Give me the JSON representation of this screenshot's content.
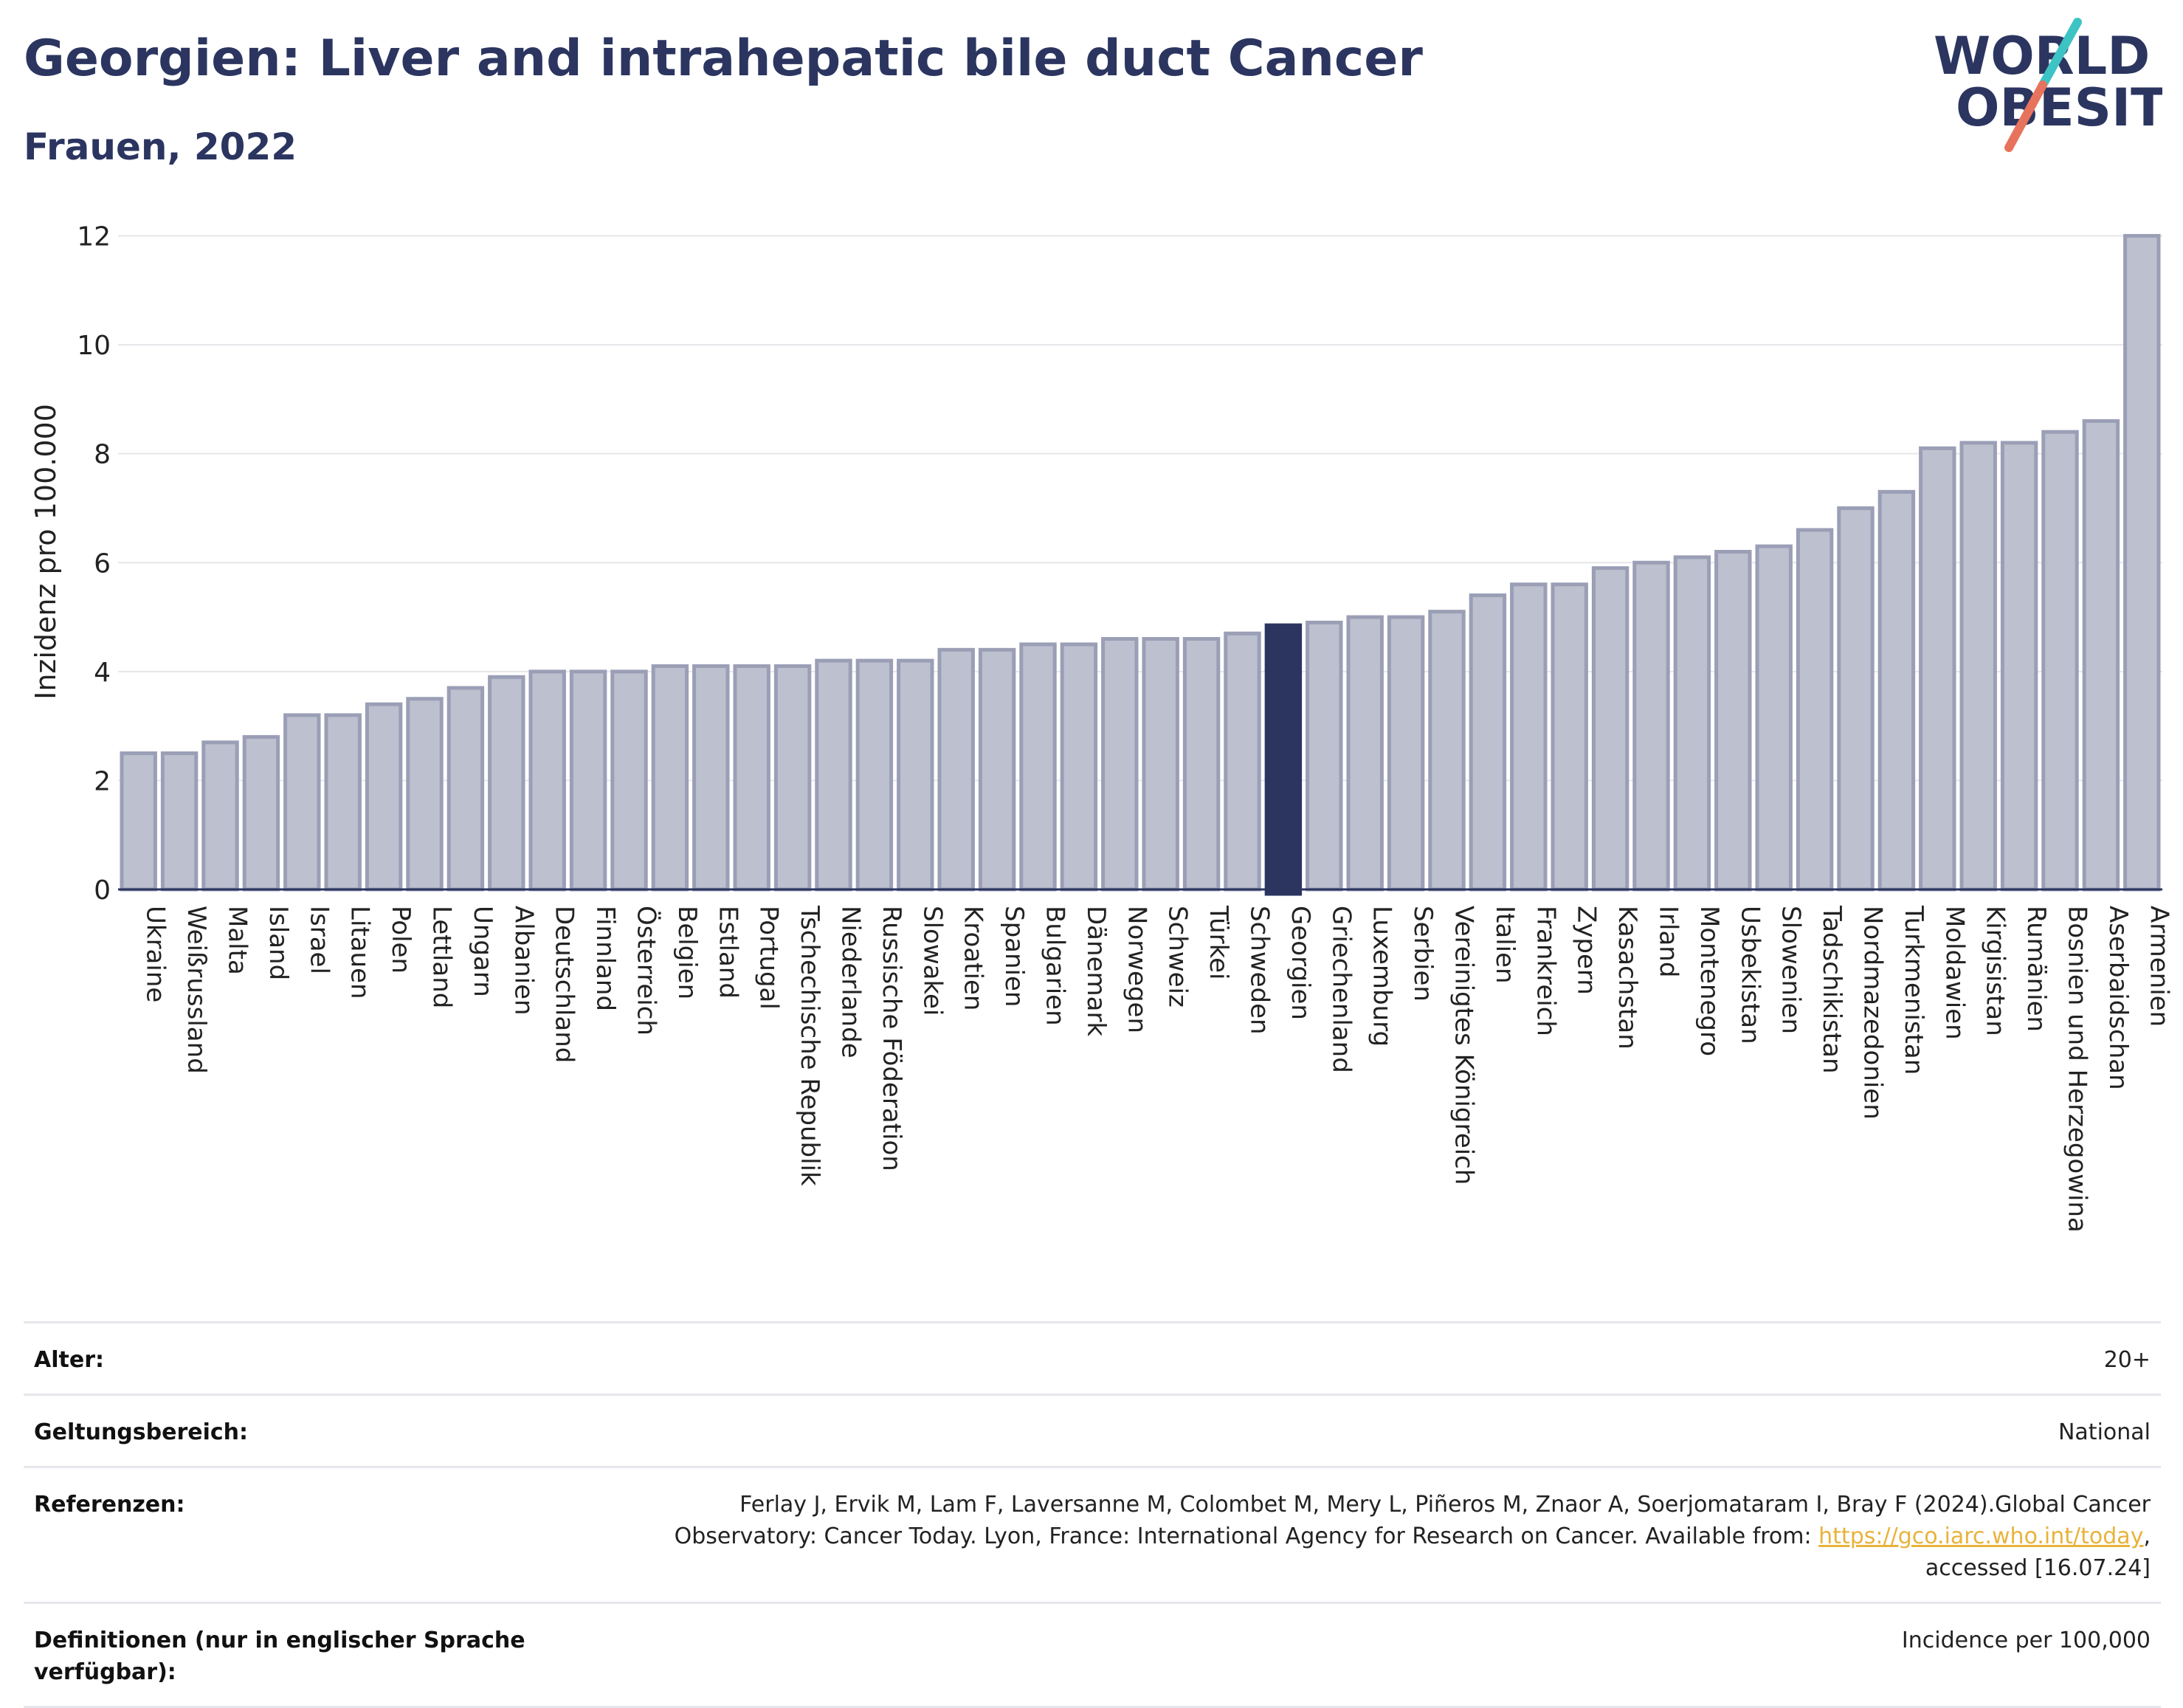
{
  "header": {
    "title": "Georgien: Liver and intrahepatic bile duct Cancer",
    "subtitle": "Frauen, 2022"
  },
  "logo": {
    "line1": "WORLD",
    "line2": "OBESITY",
    "slash_colors": [
      "#3ec3c5",
      "#e8735c"
    ],
    "text_color": "#2b3560"
  },
  "colors": {
    "bar": "#bcc0cf",
    "bar_stroke": "#9a9fb6",
    "highlight": "#2b3560",
    "grid": "#e6e6ea",
    "axis": "#2b3560"
  },
  "chart_data": {
    "type": "bar",
    "title": "Georgien: Liver and intrahepatic bile duct Cancer",
    "subtitle": "Frauen, 2022",
    "ylabel": "Inzidenz pro 100.000",
    "xlabel": "",
    "ylim": [
      0,
      12.4
    ],
    "yticks": [
      0,
      2,
      4,
      6,
      8,
      10,
      12
    ],
    "grid": true,
    "highlight": "Georgien",
    "categories": [
      "Ukraine",
      "Weißrussland",
      "Malta",
      "Island",
      "Israel",
      "Litauen",
      "Polen",
      "Lettland",
      "Ungarn",
      "Albanien",
      "Deutschland",
      "Finnland",
      "Österreich",
      "Belgien",
      "Estland",
      "Portugal",
      "Tschechische Republik",
      "Niederlande",
      "Russische Föderation",
      "Slowakei",
      "Kroatien",
      "Spanien",
      "Bulgarien",
      "Dänemark",
      "Norwegen",
      "Schweiz",
      "Türkei",
      "Schweden",
      "Georgien",
      "Griechenland",
      "Luxemburg",
      "Serbien",
      "Vereinigtes Königreich",
      "Italien",
      "Frankreich",
      "Zypern",
      "Kasachstan",
      "Irland",
      "Montenegro",
      "Usbekistan",
      "Slowenien",
      "Tadschikistan",
      "Nordmazedonien",
      "Turkmenistan",
      "Moldawien",
      "Kirgisistan",
      "Rumänien",
      "Bosnien und Herzegowina",
      "Aserbaidschan",
      "Armenien"
    ],
    "values": [
      2.5,
      2.5,
      2.7,
      2.8,
      3.2,
      3.2,
      3.4,
      3.5,
      3.7,
      3.9,
      4.0,
      4.0,
      4.0,
      4.1,
      4.1,
      4.1,
      4.1,
      4.2,
      4.2,
      4.2,
      4.4,
      4.4,
      4.5,
      4.5,
      4.6,
      4.6,
      4.6,
      4.7,
      4.85,
      4.9,
      5.0,
      5.0,
      5.1,
      5.4,
      5.6,
      5.6,
      5.9,
      6.0,
      6.1,
      6.2,
      6.3,
      6.6,
      7.0,
      7.3,
      8.1,
      8.2,
      8.2,
      8.4,
      8.6,
      12.0
    ]
  },
  "meta": {
    "rows": [
      {
        "key": "Alter:",
        "value": "20+"
      },
      {
        "key": "Geltungsbereich:",
        "value": "National"
      },
      {
        "key": "Referenzen:",
        "value_pre": "Ferlay J, Ervik M, Lam F, Laversanne M, Colombet M, Mery L, Piñeros M, Znaor A, Soerjomataram I, Bray F (2024).Global Cancer Observatory: Cancer Today. Lyon, France: International Agency for Research on Cancer. Available from: ",
        "link": "https://gco.iarc.who.int/today",
        "value_post": ", accessed [16.07.24]"
      },
      {
        "key": "Definitionen (nur in englischer Sprache verfügbar):",
        "value": "Incidence per 100,000"
      }
    ]
  }
}
